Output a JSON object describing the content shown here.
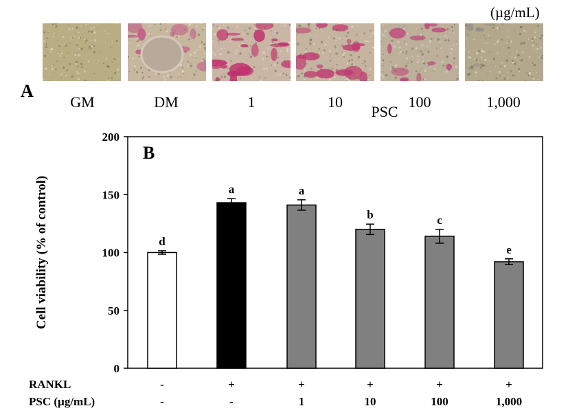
{
  "panel_a": {
    "letter": "A",
    "unit": "(µg/mL)",
    "group_label": "PSC",
    "images": [
      {
        "label": "GM",
        "base": "#b8ad83",
        "stain": "#8a8f8a",
        "density": 0
      },
      {
        "label": "DM",
        "base": "#c7b79f",
        "stain": "#c25a86",
        "density": 3
      },
      {
        "label": "1",
        "base": "#c9b6a4",
        "stain": "#c0306c",
        "density": 5
      },
      {
        "label": "10",
        "base": "#c4b4a0",
        "stain": "#c03a70",
        "density": 4
      },
      {
        "label": "100",
        "base": "#bdb09a",
        "stain": "#c0447a",
        "density": 3
      },
      {
        "label": "1,000",
        "base": "#b3a88c",
        "stain": "#8a8a86",
        "density": 1
      }
    ]
  },
  "chart_data": {
    "type": "bar",
    "panel_letter": "B",
    "ylabel": "Cell viability (% of control)",
    "ylim": [
      0,
      200
    ],
    "yticks": [
      "0",
      "50",
      "100",
      "150",
      "200"
    ],
    "bars": [
      {
        "value": 100,
        "error": 1.5,
        "letter": "d",
        "fill": "#ffffff"
      },
      {
        "value": 143,
        "error": 3.5,
        "letter": "a",
        "fill": "#000000"
      },
      {
        "value": 141,
        "error": 4.5,
        "letter": "a",
        "fill": "#808080"
      },
      {
        "value": 120,
        "error": 4.5,
        "letter": "b",
        "fill": "#808080"
      },
      {
        "value": 114,
        "error": 6.0,
        "letter": "c",
        "fill": "#808080"
      },
      {
        "value": 92,
        "error": 2.5,
        "letter": "e",
        "fill": "#808080"
      }
    ],
    "conditions": [
      {
        "name": "RANKL",
        "values": [
          "-",
          "+",
          "+",
          "+",
          "+",
          "+"
        ]
      },
      {
        "name": "PSC (µg/mL)",
        "values": [
          "-",
          "-",
          "1",
          "10",
          "100",
          "1,000"
        ]
      }
    ]
  }
}
